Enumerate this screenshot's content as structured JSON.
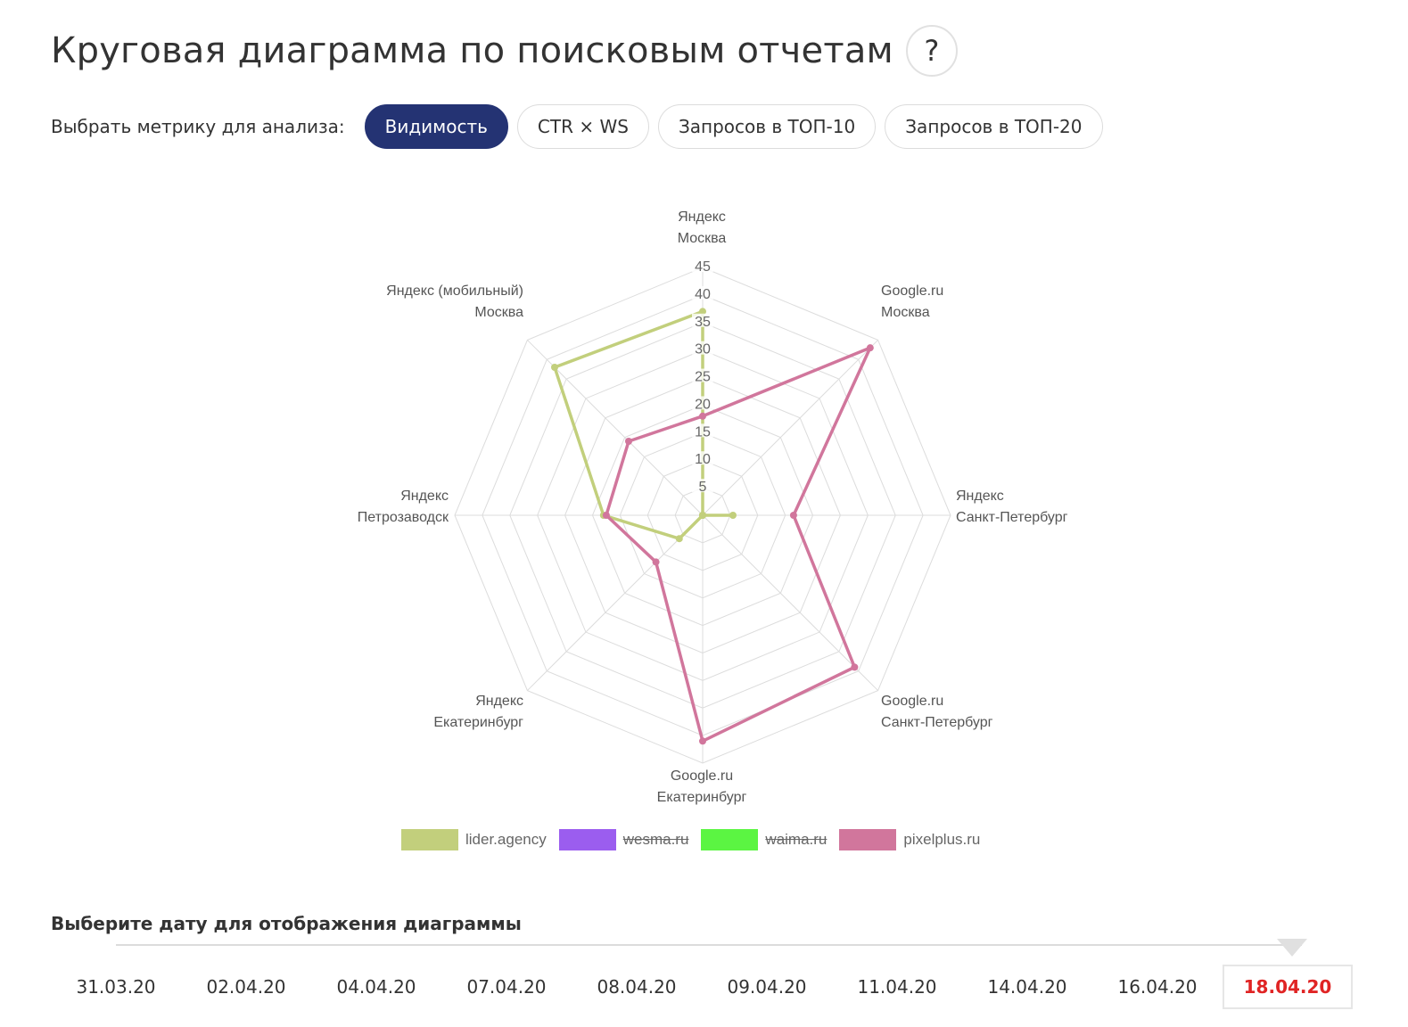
{
  "header": {
    "title": "Круговая диаграмма по поисковым отчетам",
    "help_label": "?"
  },
  "metrics": {
    "label": "Выбрать метрику для анализа:",
    "options": [
      "Видимость",
      "CTR × WS",
      "Запросов в ТОП-10",
      "Запросов в ТОП-20"
    ],
    "active_index": 0,
    "active_color": "#243373"
  },
  "chart_data": {
    "type": "radar",
    "axes": [
      [
        "Яндекс",
        "Москва"
      ],
      [
        "Google.ru",
        "Москва"
      ],
      [
        "Яндекс",
        "Санкт-Петербург"
      ],
      [
        "Google.ru",
        "Санкт-Петербург"
      ],
      [
        "Google.ru",
        "Екатеринбург"
      ],
      [
        "Яндекс",
        "Екатеринбург"
      ],
      [
        "Яндекс",
        "Петрозаводск"
      ],
      [
        "Яндекс (мобильный)",
        "Москва"
      ]
    ],
    "rmin": 0,
    "rmax": 45,
    "tick_step": 5,
    "ticks": [
      "5",
      "10",
      "15",
      "20",
      "25",
      "30",
      "35",
      "40",
      "45"
    ],
    "grid": true,
    "legend_position": "bottom",
    "series": [
      {
        "name": "lider.agency",
        "color": "#c2cf7c",
        "hidden": false,
        "values": [
          37,
          0,
          5.5,
          0,
          0,
          6,
          18,
          38
        ]
      },
      {
        "name": "wesma.ru",
        "color": "#9b5def",
        "hidden": true,
        "values": []
      },
      {
        "name": "waima.ru",
        "color": "#5bf542",
        "hidden": true,
        "values": []
      },
      {
        "name": "pixelplus.ru",
        "color": "#d1769c",
        "hidden": false,
        "values": [
          18,
          43,
          16.5,
          39,
          41,
          12,
          17.5,
          19
        ]
      }
    ]
  },
  "dates": {
    "title": "Выберите дату для отображения диаграммы",
    "items": [
      "31.03.20",
      "02.04.20",
      "04.04.20",
      "07.04.20",
      "08.04.20",
      "09.04.20",
      "11.04.20",
      "14.04.20",
      "16.04.20",
      "18.04.20"
    ],
    "selected_index": 9
  }
}
